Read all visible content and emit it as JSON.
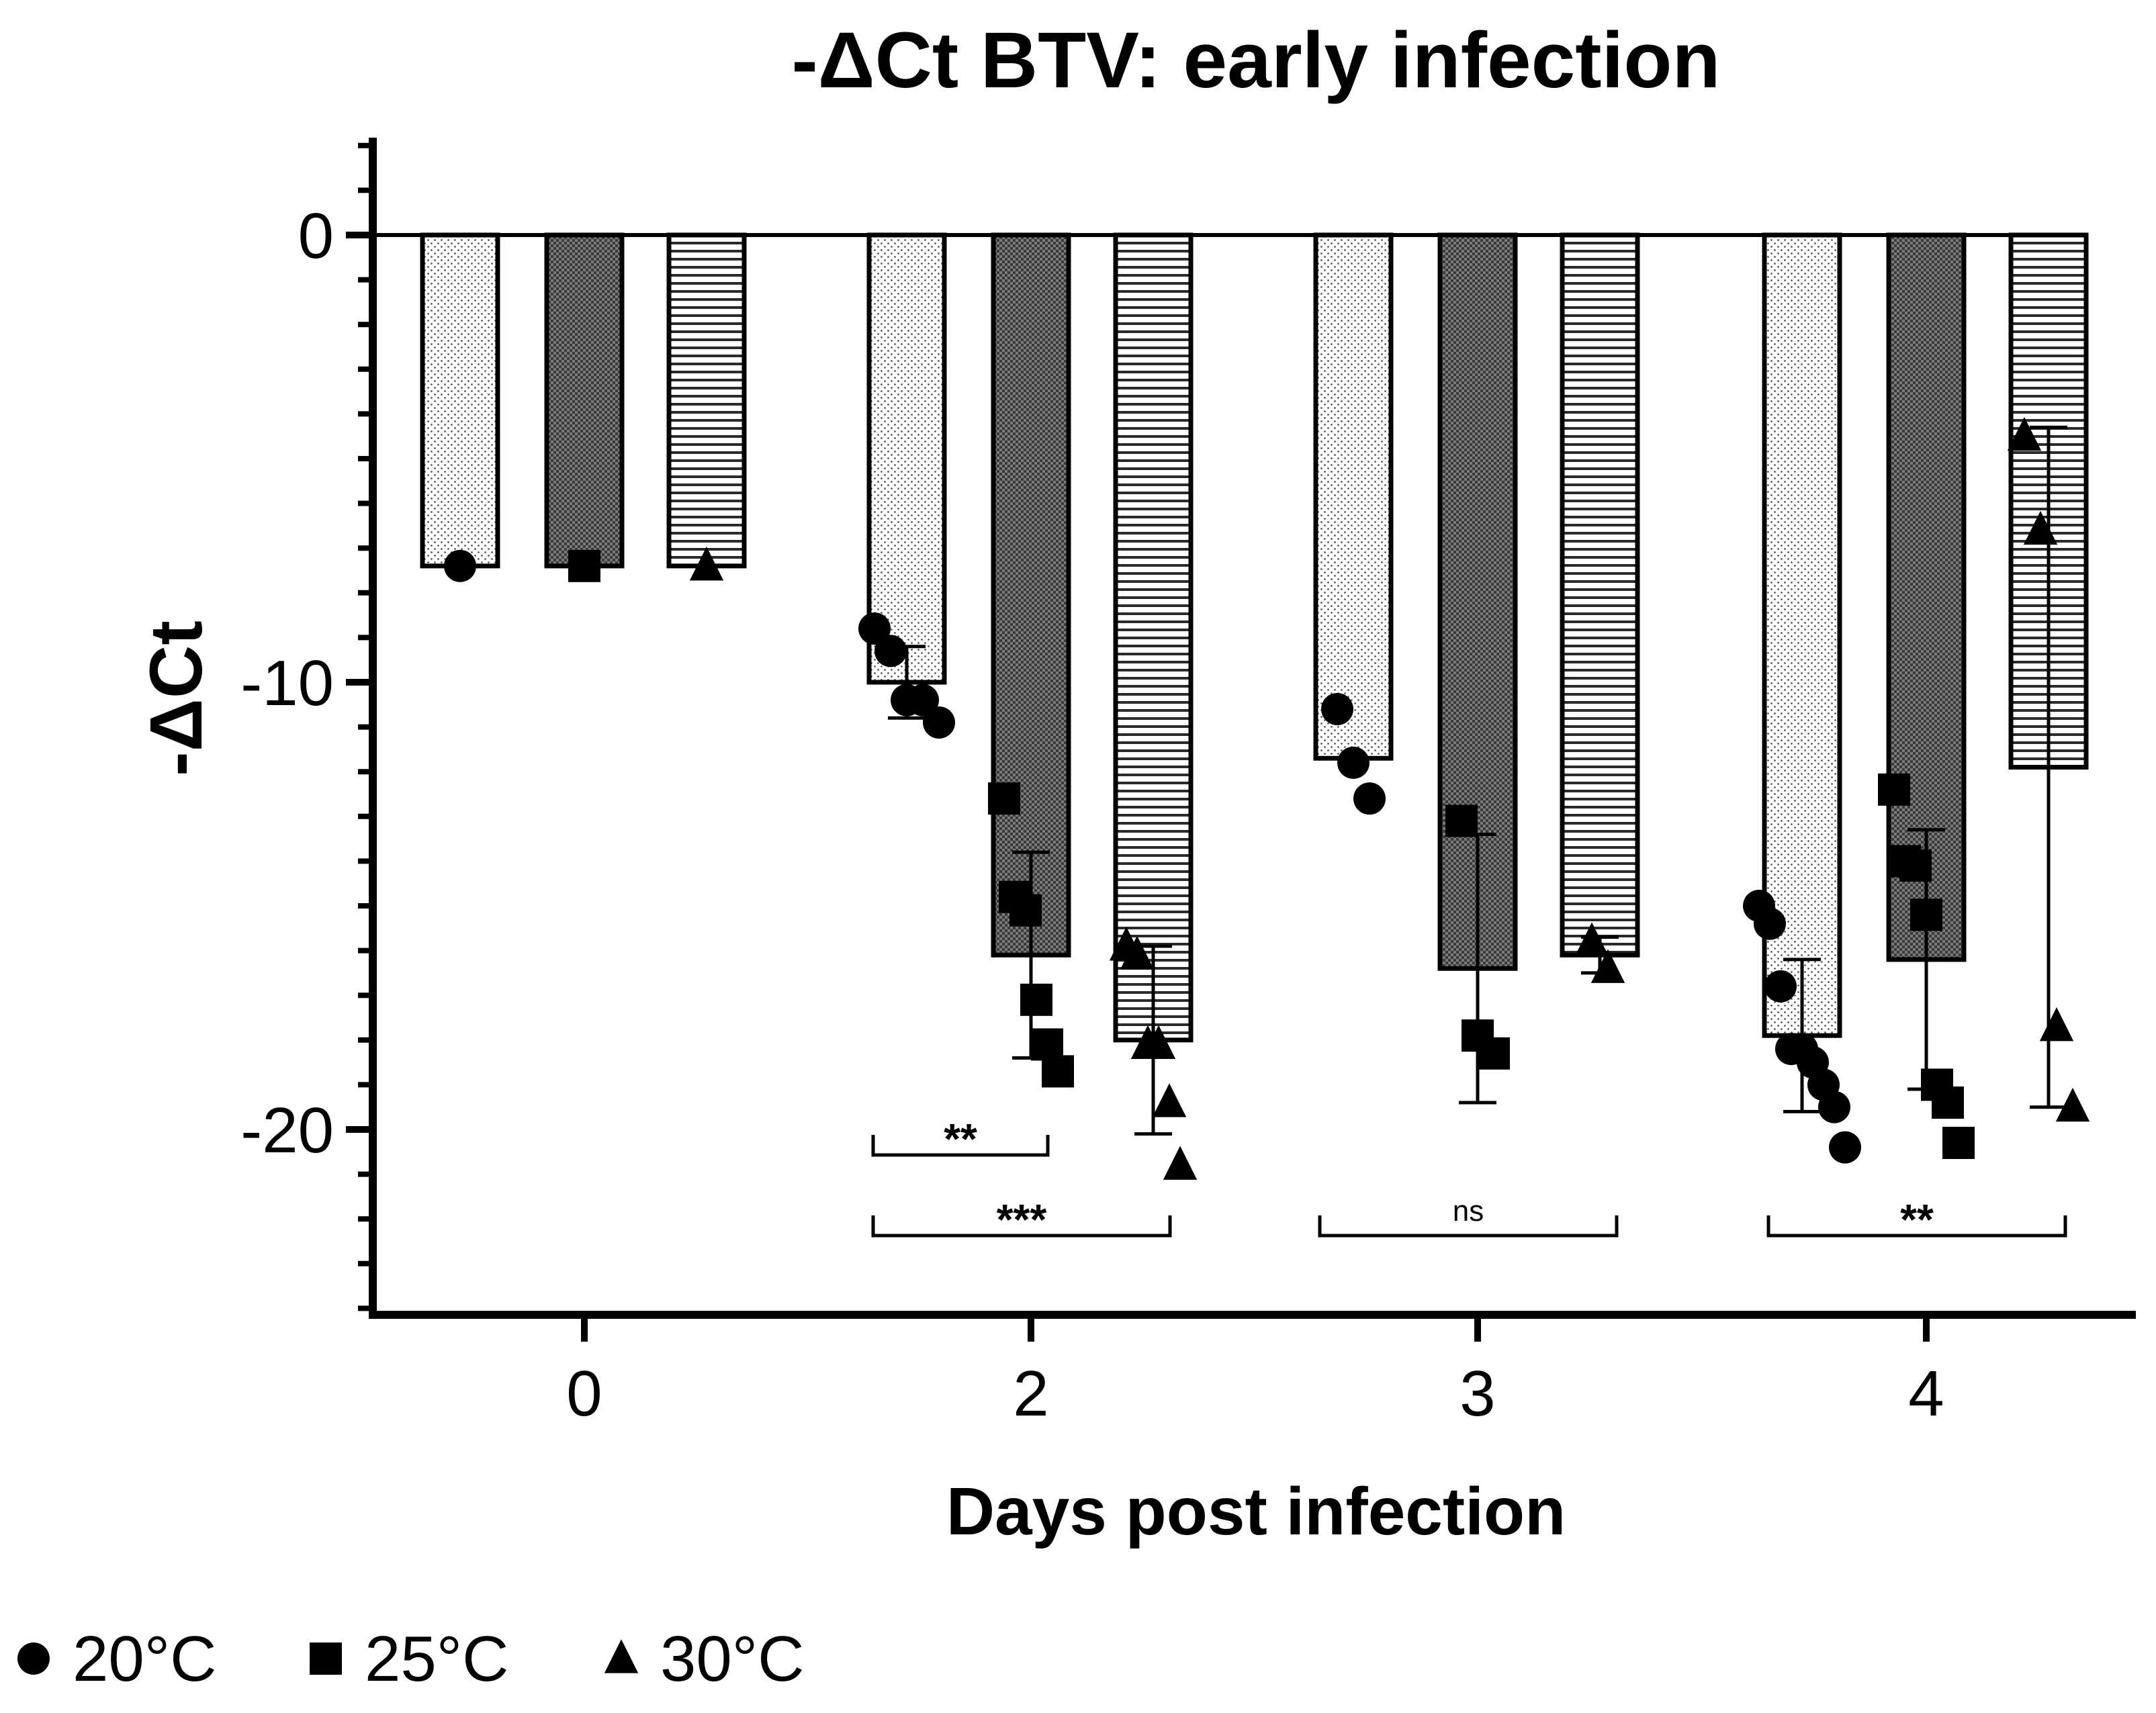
{
  "chart_data": {
    "type": "bar",
    "title": "-ΔCt BTV: early infection",
    "xlabel": "Days post infection",
    "ylabel": "-ΔCt",
    "ylim": [
      -24,
      2
    ],
    "yticks": [
      0,
      -10,
      -20
    ],
    "ytick_labels": [
      "0",
      "-10",
      "-20"
    ],
    "categories": [
      "0",
      "2",
      "3",
      "4"
    ],
    "series": [
      {
        "name": "20°C",
        "marker": "circle",
        "values": [
          -7.4,
          -10.0,
          -11.7,
          -17.9
        ],
        "errors": [
          0,
          0.8,
          0,
          1.7
        ],
        "points": [
          [
            -7.4
          ],
          [
            -8.8,
            -9.3,
            -10.4,
            -10.4,
            -10.9
          ],
          [
            -10.6,
            -11.8,
            -12.6
          ],
          [
            -15.0,
            -15.4,
            -16.8,
            -18.2,
            -18.2,
            -18.5,
            -19.0,
            -19.5,
            -20.4
          ]
        ]
      },
      {
        "name": "25°C",
        "marker": "square",
        "values": [
          -7.4,
          -16.1,
          -16.4,
          -16.2
        ],
        "errors": [
          0,
          2.3,
          3.0,
          2.9
        ],
        "points": [
          [
            -7.4
          ],
          [
            -12.6,
            -14.8,
            -15.1,
            -17.1,
            -18.1,
            -18.7
          ],
          [
            -13.1,
            -17.9,
            -18.3
          ],
          [
            -12.4,
            -14.0,
            -14.1,
            -15.2,
            -19.0,
            -19.4,
            -20.3
          ]
        ]
      },
      {
        "name": "30°C",
        "marker": "triangle",
        "values": [
          -7.4,
          -18.0,
          -16.1,
          -11.9
        ],
        "errors": [
          0,
          2.1,
          0.4,
          7.6
        ],
        "points": [
          [
            -7.4
          ],
          [
            -15.9,
            -16.1,
            -18.1,
            -18.1,
            -19.4,
            -20.8
          ],
          [
            -15.8,
            -16.4
          ],
          [
            -4.5,
            -6.6,
            -17.7,
            -19.5
          ]
        ]
      }
    ],
    "significance": [
      {
        "label": "**",
        "from": [
          "2",
          "20°C"
        ],
        "to": [
          "2",
          "25°C"
        ]
      },
      {
        "label": "***",
        "from": [
          "2",
          "20°C"
        ],
        "to": [
          "2",
          "30°C"
        ]
      },
      {
        "label": "ns",
        "from": [
          "3",
          "20°C"
        ],
        "to": [
          "3",
          "30°C"
        ]
      },
      {
        "label": "**",
        "from": [
          "4",
          "20°C"
        ],
        "to": [
          "4",
          "30°C"
        ]
      }
    ],
    "legend": [
      "20°C",
      "25°C",
      "30°C"
    ],
    "legend_position": "bottom-left"
  }
}
